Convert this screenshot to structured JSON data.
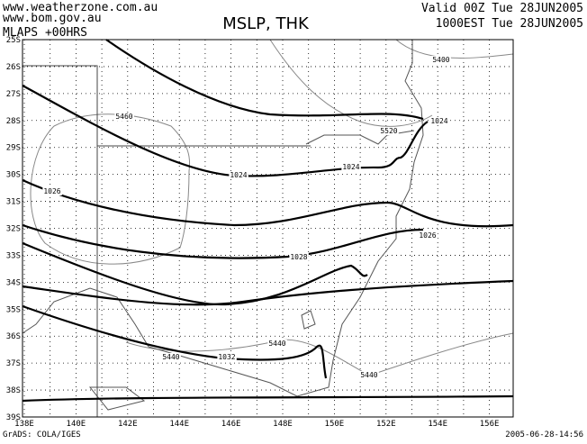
{
  "header": {
    "site": [
      "www.weatherzone.com.au",
      "www.bom.gov.au"
    ],
    "title": "MSLP, THK",
    "model": "MLAPS +00HRS",
    "valid": "Valid 00Z Tue 28JUN2005",
    "local": "1000EST Tue 28JUN2005"
  },
  "axes": {
    "lat": [
      "25S",
      "26S",
      "27S",
      "28S",
      "29S",
      "30S",
      "31S",
      "32S",
      "33S",
      "34S",
      "35S",
      "36S",
      "37S",
      "38S",
      "39S"
    ],
    "lon": [
      "138E",
      "140E",
      "142E",
      "144E",
      "146E",
      "148E",
      "150E",
      "152E",
      "154E",
      "156E"
    ]
  },
  "contour_labels": [
    "5400",
    "1024",
    "5460",
    "5520",
    "1024",
    "1024",
    "1026",
    "1026",
    "1028",
    "5440",
    "5440",
    "1032",
    "5440"
  ],
  "footer": {
    "source": "GrADS: COLA/IGES",
    "stamp": "2005-06-28-14:56"
  }
}
